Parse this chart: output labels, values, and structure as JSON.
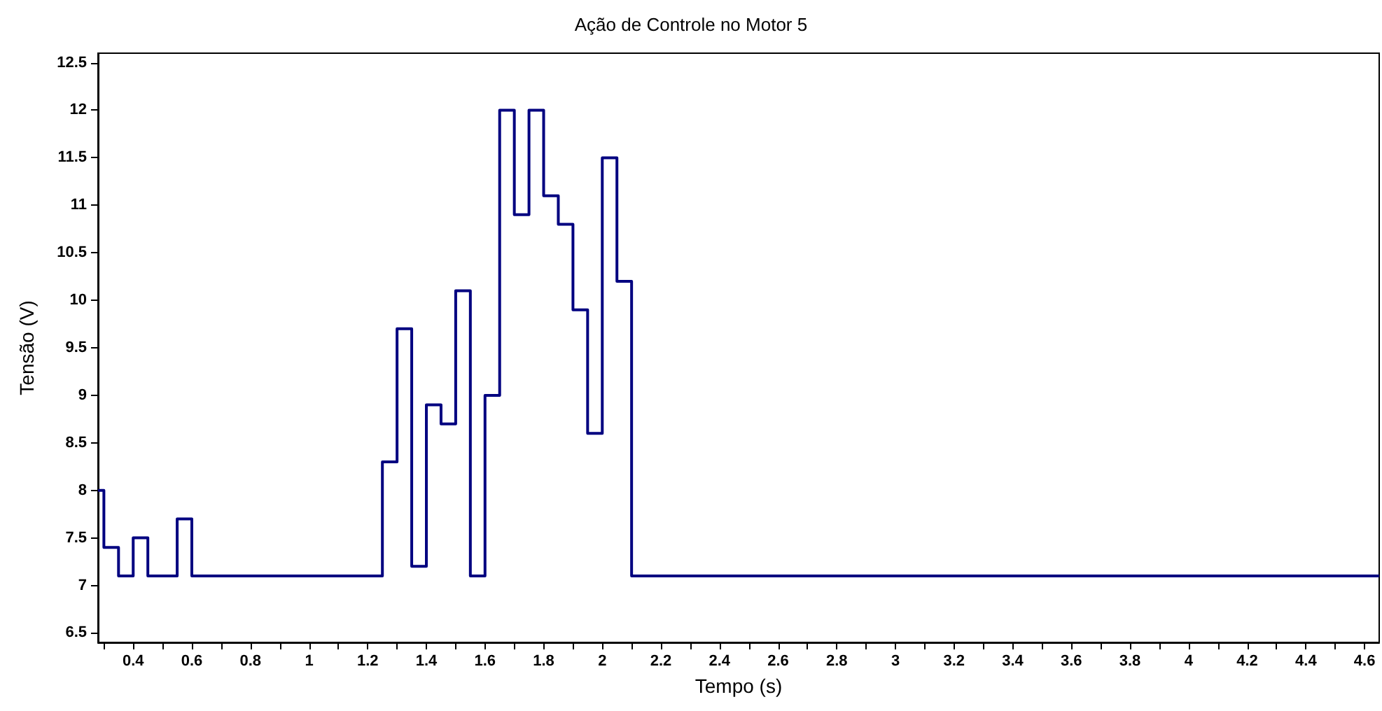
{
  "chart_data": {
    "type": "step",
    "title": "Ação de Controle no Motor 5",
    "xlabel": "Tempo (s)",
    "ylabel": "Tensão (V)",
    "x": [
      0.28,
      0.3,
      0.35,
      0.4,
      0.45,
      0.55,
      0.6,
      1.25,
      1.3,
      1.35,
      1.4,
      1.45,
      1.5,
      1.55,
      1.6,
      1.65,
      1.7,
      1.75,
      1.8,
      1.85,
      1.9,
      1.95,
      2.0,
      2.05,
      2.1,
      4.65
    ],
    "series": [
      {
        "color": "#000080",
        "values": [
          8.0,
          7.4,
          7.1,
          7.5,
          7.1,
          7.7,
          7.1,
          8.3,
          9.7,
          7.2,
          8.9,
          8.7,
          10.1,
          7.1,
          9.0,
          12.0,
          10.9,
          12.0,
          11.1,
          10.8,
          9.9,
          8.6,
          11.5,
          10.2,
          7.1,
          7.1
        ]
      }
    ],
    "xlim": [
      0.28,
      4.65
    ],
    "xticks": [
      {
        "value": 0.3,
        "label": null
      },
      0.4,
      {
        "value": 0.5,
        "label": null
      },
      0.6,
      {
        "value": 0.7,
        "label": null
      },
      0.8,
      {
        "value": 0.9,
        "label": null
      },
      1,
      {
        "value": 1.1,
        "label": null
      },
      1.2,
      {
        "value": 1.3,
        "label": null
      },
      1.4,
      {
        "value": 1.5,
        "label": null
      },
      1.6,
      {
        "value": 1.7,
        "label": null
      },
      1.8,
      {
        "value": 1.9,
        "label": null
      },
      2,
      {
        "value": 2.1,
        "label": null
      },
      2.2,
      {
        "value": 2.3,
        "label": null
      },
      2.4,
      {
        "value": 2.5,
        "label": null
      },
      2.6,
      {
        "value": 2.7,
        "label": null
      },
      2.8,
      {
        "value": 2.9,
        "label": null
      },
      3,
      {
        "value": 3.1,
        "label": null
      },
      3.2,
      {
        "value": 3.3,
        "label": null
      },
      3.4,
      {
        "value": 3.5,
        "label": null
      },
      3.6,
      {
        "value": 3.7,
        "label": null
      },
      3.8,
      {
        "value": 3.9,
        "label": null
      },
      4,
      {
        "value": 4.1,
        "label": null
      },
      4.2,
      {
        "value": 4.3,
        "label": null
      },
      4.4,
      {
        "value": 4.5,
        "label": null
      },
      4.6
    ],
    "ylim": [
      6.4,
      12.6
    ],
    "yticks": [
      6.5,
      7,
      7.5,
      8,
      8.5,
      9,
      9.5,
      10,
      10.5,
      11,
      11.5,
      12,
      12.5
    ],
    "marker": "none",
    "line_style": "solid"
  }
}
